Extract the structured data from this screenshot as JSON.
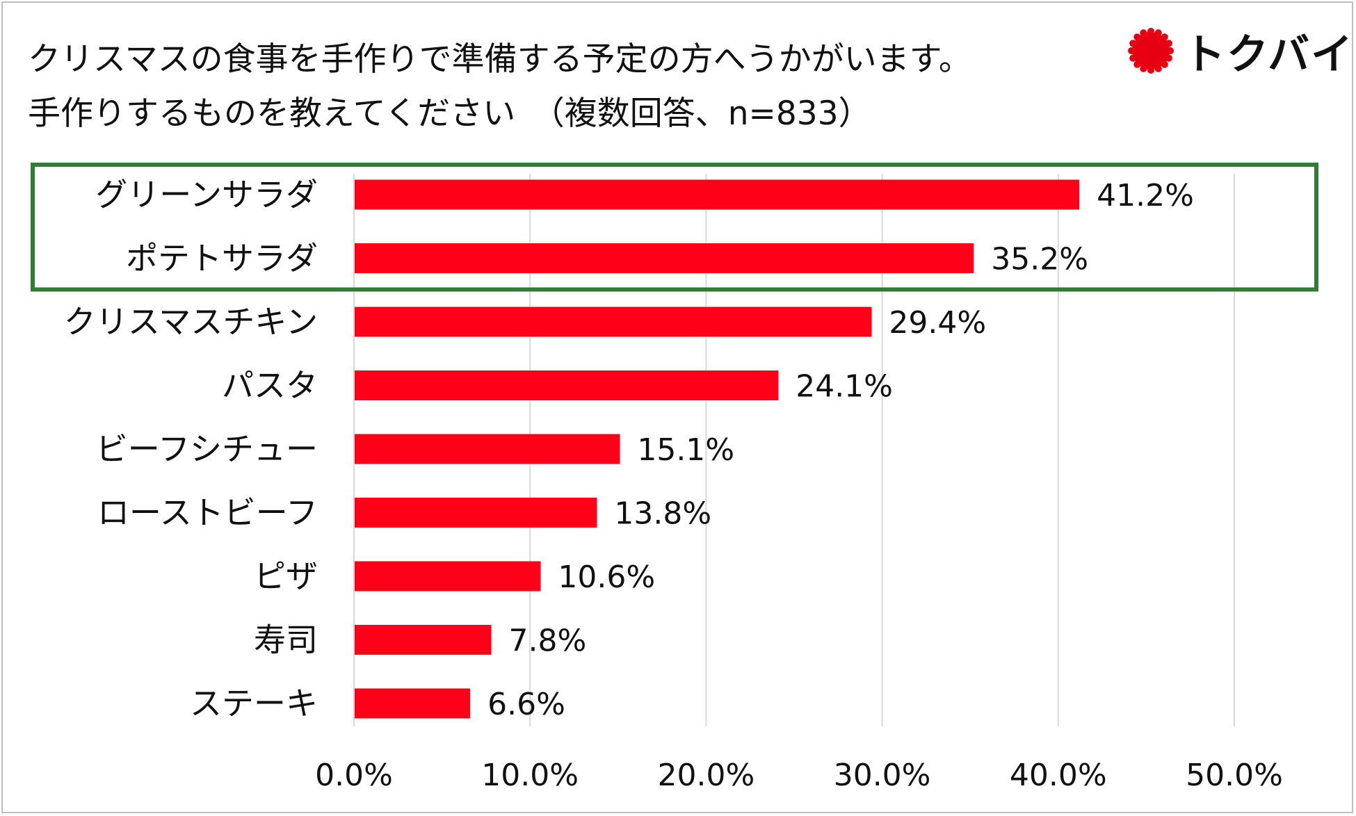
{
  "title": {
    "line1": "クリスマスの食事を手作りで準備する予定の方へうかがいます。",
    "line2": "手作りするものを教えてください　（複数回答、n=833）"
  },
  "logo": {
    "text": "トクバイ",
    "color": "#e60012"
  },
  "colors": {
    "bar": "#ff0019",
    "highlight_border": "#2e7d32",
    "grid": "#d9d9d9"
  },
  "chart_data": {
    "type": "bar",
    "orientation": "horizontal",
    "title": "クリスマスの食事を手作りで準備する予定の方へうかがいます。手作りするものを教えてください　（複数回答、n=833）",
    "categories": [
      "グリーンサラダ",
      "ポテトサラダ",
      "クリスマスチキン",
      "パスタ",
      "ビーフシチュー",
      "ローストビーフ",
      "ピザ",
      "寿司",
      "ステーキ"
    ],
    "values": [
      41.2,
      35.2,
      29.4,
      24.1,
      15.1,
      13.8,
      10.6,
      7.8,
      6.6
    ],
    "value_labels": [
      "41.2%",
      "35.2%",
      "29.4%",
      "24.1%",
      "15.1%",
      "13.8%",
      "10.6%",
      "7.8%",
      "6.6%"
    ],
    "xlim": [
      0,
      50
    ],
    "xticks": [
      0,
      10,
      20,
      30,
      40,
      50
    ],
    "xtick_labels": [
      "0.0%",
      "10.0%",
      "20.0%",
      "30.0%",
      "40.0%",
      "50.0%"
    ],
    "grid": true,
    "highlighted_categories": [
      "グリーンサラダ",
      "ポテトサラダ"
    ],
    "xlabel": "",
    "ylabel": ""
  }
}
